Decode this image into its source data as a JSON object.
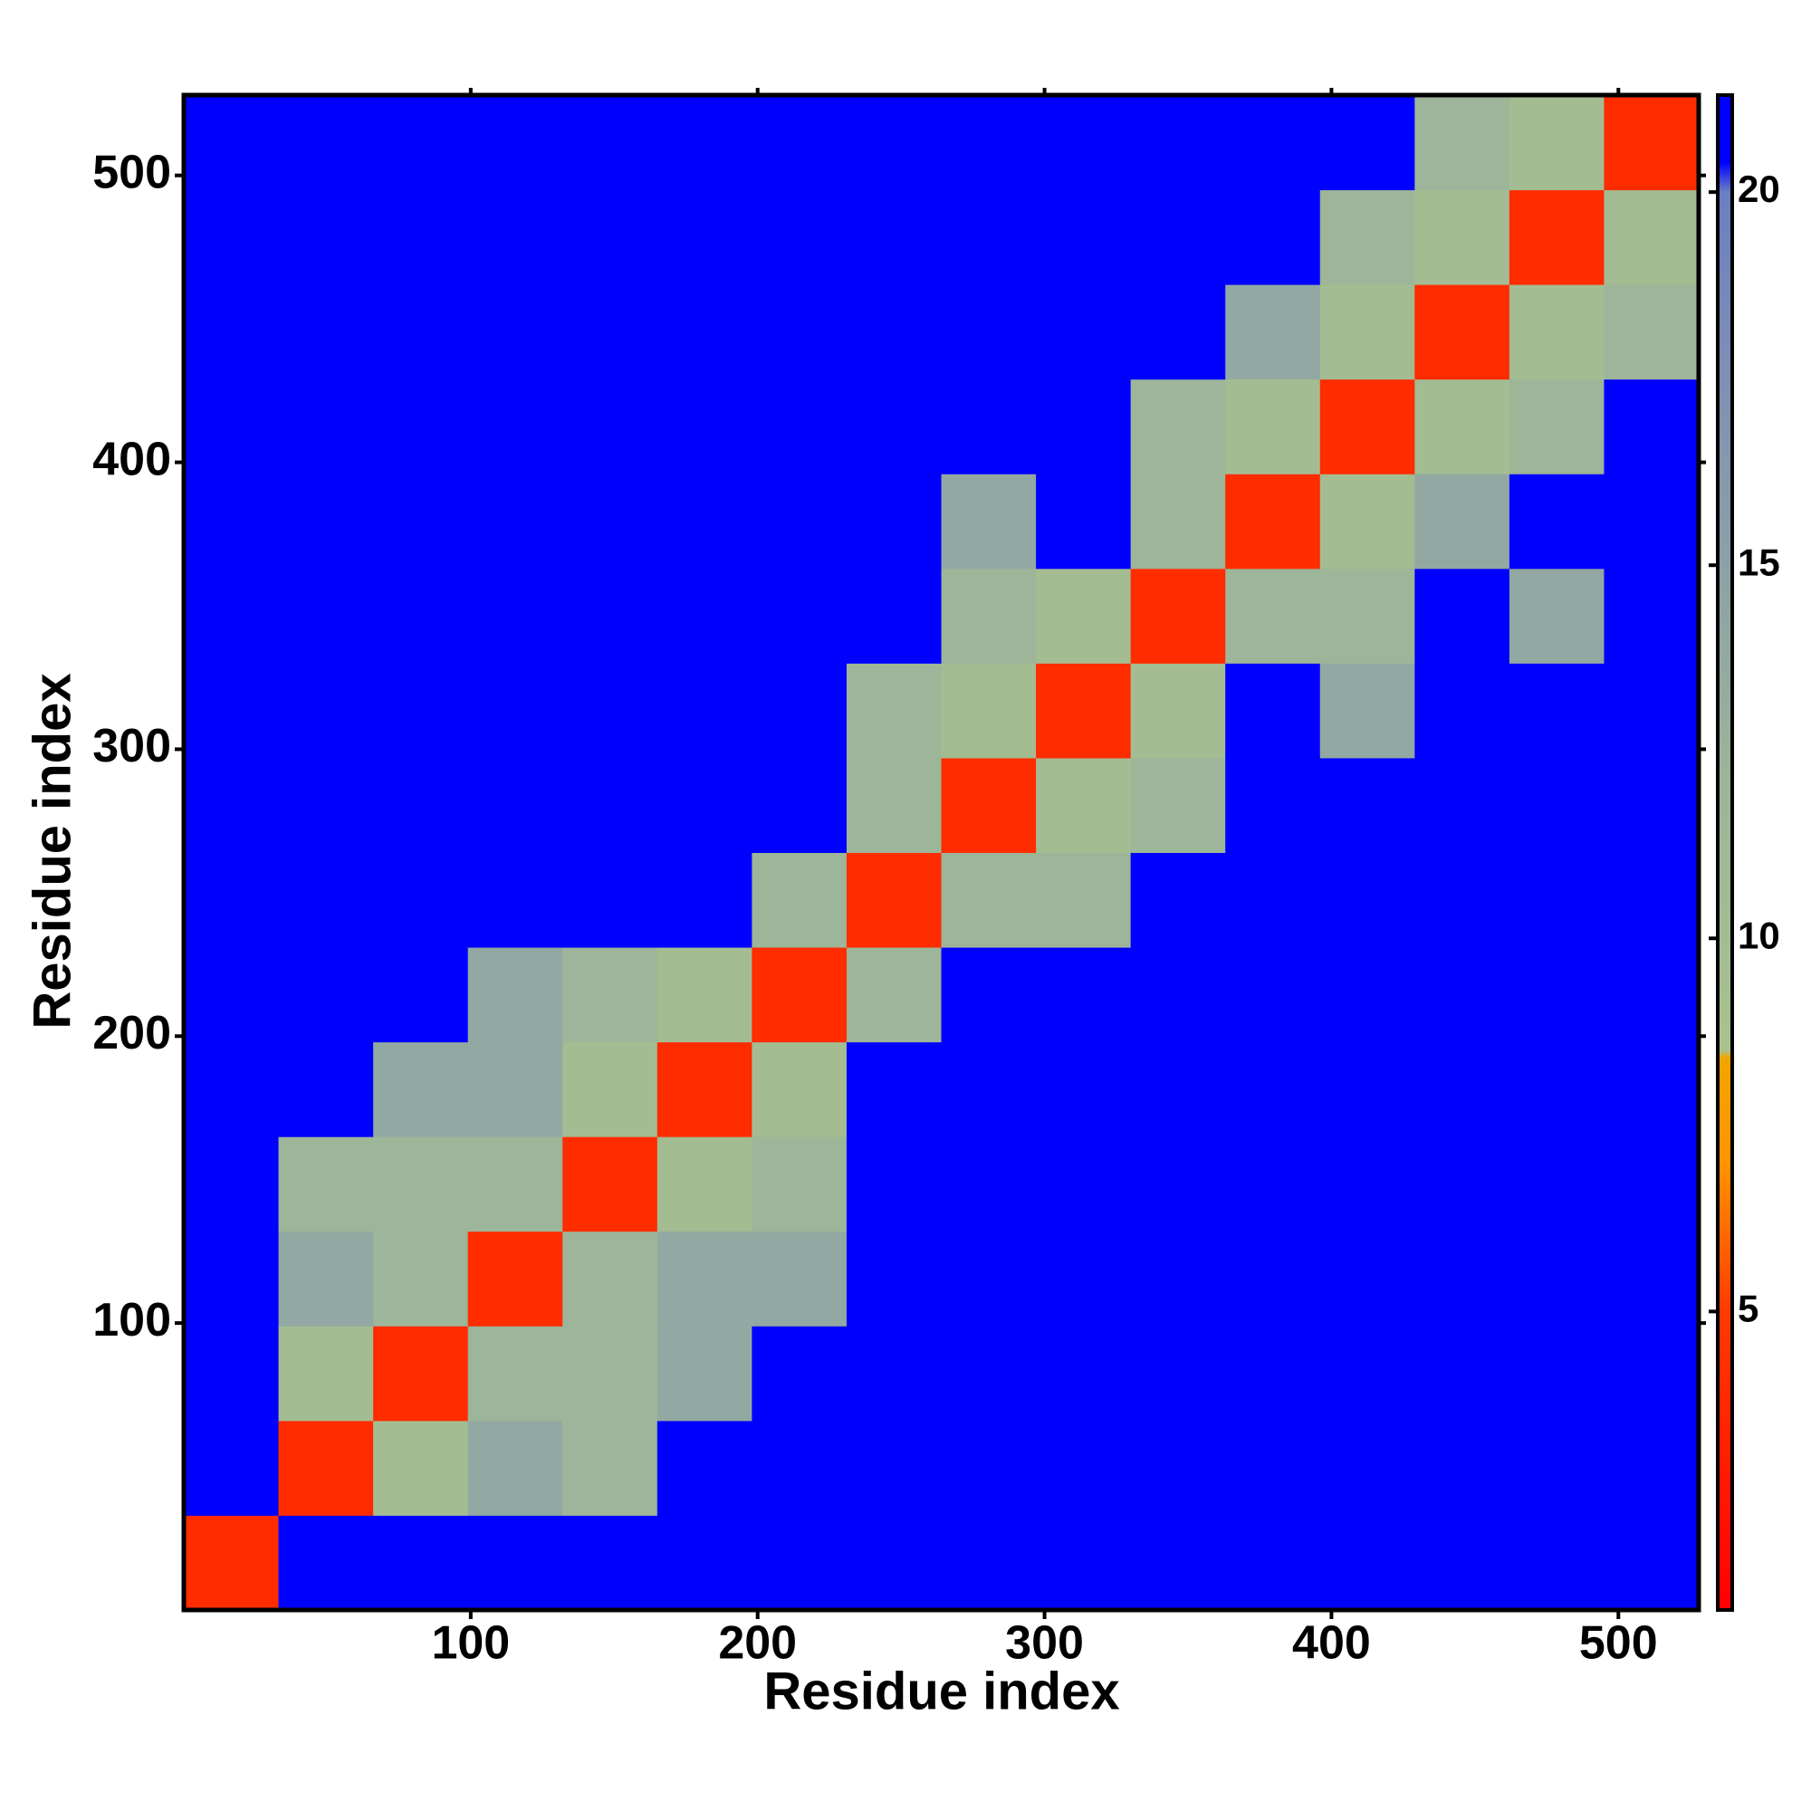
{
  "chart_data": {
    "type": "heatmap",
    "x_title": "Residue index",
    "y_title": "Residue index",
    "x_bins": [
      0,
      33,
      66,
      99,
      132,
      165,
      198,
      231,
      264,
      297,
      330,
      363,
      396,
      429,
      462,
      495,
      528
    ],
    "y_bins": [
      0,
      33,
      66,
      99,
      132,
      165,
      198,
      231,
      264,
      297,
      330,
      363,
      396,
      429,
      462,
      495,
      528
    ],
    "z": [
      [
        4,
        21,
        21,
        21,
        21,
        21,
        21,
        21,
        21,
        21,
        21,
        21,
        21,
        21,
        21,
        21
      ],
      [
        21,
        4,
        10,
        14,
        12,
        21,
        21,
        21,
        21,
        21,
        21,
        21,
        21,
        21,
        21,
        21
      ],
      [
        21,
        10,
        4,
        12,
        12,
        14,
        21,
        21,
        21,
        21,
        21,
        21,
        21,
        21,
        21,
        21
      ],
      [
        21,
        14,
        12,
        4,
        12,
        14,
        14,
        21,
        21,
        21,
        21,
        21,
        21,
        21,
        21,
        21
      ],
      [
        21,
        12,
        12,
        12,
        4,
        10,
        12,
        21,
        21,
        21,
        21,
        21,
        21,
        21,
        21,
        21
      ],
      [
        21,
        21,
        14,
        14,
        10,
        4,
        10,
        21,
        21,
        21,
        21,
        21,
        21,
        21,
        21,
        21
      ],
      [
        21,
        21,
        21,
        14,
        12,
        10,
        4,
        12,
        21,
        21,
        21,
        21,
        21,
        21,
        21,
        21
      ],
      [
        21,
        21,
        21,
        21,
        21,
        21,
        12,
        4,
        12,
        12,
        21,
        21,
        21,
        21,
        21,
        21
      ],
      [
        21,
        21,
        21,
        21,
        21,
        21,
        21,
        12,
        4,
        10,
        12,
        21,
        21,
        21,
        21,
        21
      ],
      [
        21,
        21,
        21,
        21,
        21,
        21,
        21,
        12,
        10,
        4,
        10,
        21,
        14,
        21,
        21,
        21
      ],
      [
        21,
        21,
        21,
        21,
        21,
        21,
        21,
        21,
        12,
        10,
        4,
        12,
        12,
        21,
        14,
        21
      ],
      [
        21,
        21,
        21,
        21,
        21,
        21,
        21,
        21,
        14,
        21,
        12,
        4,
        10,
        14,
        21,
        21
      ],
      [
        21,
        21,
        21,
        21,
        21,
        21,
        21,
        21,
        21,
        21,
        12,
        10,
        4,
        10,
        12,
        21
      ],
      [
        21,
        21,
        21,
        21,
        21,
        21,
        21,
        21,
        21,
        21,
        21,
        14,
        10,
        4,
        10,
        12
      ],
      [
        21,
        21,
        21,
        21,
        21,
        21,
        21,
        21,
        21,
        21,
        21,
        21,
        12,
        10,
        4,
        10
      ],
      [
        21,
        21,
        21,
        21,
        21,
        21,
        21,
        21,
        21,
        21,
        21,
        21,
        21,
        12,
        10,
        4
      ]
    ],
    "xlim": [
      0,
      528
    ],
    "ylim": [
      0,
      528
    ],
    "xticks": [
      100,
      200,
      300,
      400,
      500
    ],
    "yticks": [
      100,
      200,
      300,
      400,
      500
    ],
    "clim": [
      1,
      21.3
    ],
    "cticks": [
      5,
      10,
      15,
      20
    ],
    "colorscale": [
      [
        1,
        "#ff0000"
      ],
      [
        5,
        "#ff3a00"
      ],
      [
        7,
        "#ff9400"
      ],
      [
        8.4,
        "#f2a400"
      ],
      [
        8.5,
        "#a9c28e"
      ],
      [
        12,
        "#9db598"
      ],
      [
        18,
        "#7b8db6"
      ],
      [
        20,
        "#6a7fc2"
      ],
      [
        20.4,
        "#0000ff"
      ],
      [
        21.3,
        "#0000ff"
      ]
    ]
  }
}
